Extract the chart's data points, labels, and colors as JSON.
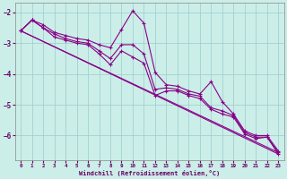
{
  "xlabel": "Windchill (Refroidissement éolien,°C)",
  "line_color": "#880088",
  "bg_color": "#cceee8",
  "grid_color": "#99cccc",
  "xlim": [
    -0.5,
    23.5
  ],
  "ylim": [
    -6.8,
    -1.7
  ],
  "yticks": [
    -6,
    -5,
    -4,
    -3,
    -2
  ],
  "xticks": [
    0,
    1,
    2,
    3,
    4,
    5,
    6,
    7,
    8,
    9,
    10,
    11,
    12,
    13,
    14,
    15,
    16,
    17,
    18,
    19,
    20,
    21,
    22,
    23
  ],
  "line1_x": [
    0,
    1,
    2,
    3,
    4,
    5,
    6,
    7,
    8,
    9,
    10,
    11,
    12,
    13,
    14,
    15,
    16,
    17,
    18,
    19,
    20,
    21,
    22,
    23
  ],
  "line1_y": [
    -2.6,
    -2.25,
    -2.4,
    -2.65,
    -2.75,
    -2.85,
    -2.9,
    -3.05,
    -3.15,
    -2.55,
    -1.95,
    -2.35,
    -3.95,
    -4.35,
    -4.4,
    -4.55,
    -4.65,
    -4.25,
    -4.9,
    -5.3,
    -5.85,
    -6.0,
    -6.0,
    -6.5
  ],
  "line2_x": [
    0,
    1,
    2,
    3,
    4,
    5,
    6,
    7,
    8,
    9,
    10,
    11,
    12,
    13,
    14,
    15,
    16,
    17,
    18,
    19,
    20,
    21,
    22,
    23
  ],
  "line2_y": [
    -2.6,
    -2.25,
    -2.5,
    -2.7,
    -2.85,
    -2.95,
    -3.0,
    -3.25,
    -3.5,
    -3.05,
    -3.05,
    -3.35,
    -4.5,
    -4.45,
    -4.5,
    -4.65,
    -4.72,
    -5.1,
    -5.2,
    -5.35,
    -5.9,
    -6.05,
    -6.05,
    -6.55
  ],
  "line3_x": [
    0,
    1,
    2,
    3,
    4,
    5,
    6,
    7,
    8,
    9,
    10,
    11,
    12,
    13,
    14,
    15,
    16,
    17,
    18,
    19,
    20,
    21,
    22,
    23
  ],
  "line3_y": [
    -2.6,
    -2.25,
    -2.5,
    -2.8,
    -2.9,
    -3.0,
    -3.05,
    -3.35,
    -3.7,
    -3.25,
    -3.45,
    -3.65,
    -4.7,
    -4.55,
    -4.55,
    -4.7,
    -4.8,
    -5.15,
    -5.3,
    -5.4,
    -5.95,
    -6.1,
    -6.05,
    -6.6
  ],
  "line4_x": [
    0,
    23
  ],
  "line4_y": [
    -2.6,
    -6.55
  ],
  "line5_x": [
    0,
    23
  ],
  "line5_y": [
    -2.6,
    -6.6
  ]
}
